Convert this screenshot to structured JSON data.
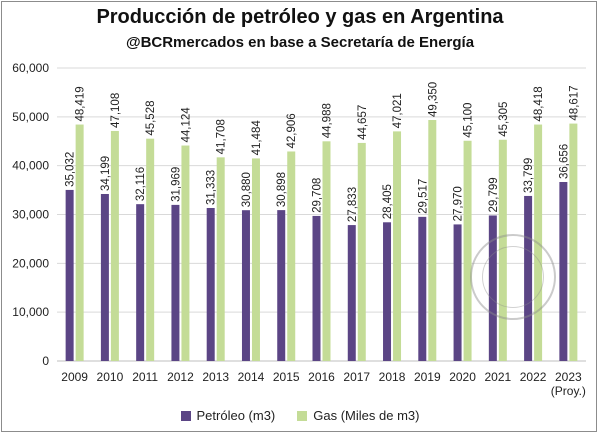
{
  "chart_data": {
    "type": "bar",
    "title": "Producción de petróleo y gas en Argentina",
    "subtitle": "@BCRmercados en base a Secretaría de Energía",
    "categories": [
      "2009",
      "2010",
      "2011",
      "2012",
      "2013",
      "2014",
      "2015",
      "2016",
      "2017",
      "2018",
      "2019",
      "2020",
      "2021",
      "2022",
      "2023"
    ],
    "category_sublabels": {
      "2023": "(Proy.)"
    },
    "series": [
      {
        "name": "Petróleo (m3)",
        "color": "#5b4585",
        "values": [
          35032,
          34199,
          32116,
          31969,
          31333,
          30880,
          30898,
          29708,
          27833,
          28405,
          29517,
          27970,
          29799,
          33799,
          36656
        ],
        "labels": [
          "35,032",
          "34,199",
          "32,116",
          "31,969",
          "31,333",
          "30,880",
          "30,898",
          "29,708",
          "27,833",
          "28,405",
          "29,517",
          "27,970",
          "29,799",
          "33,799",
          "36,656"
        ]
      },
      {
        "name": "Gas (Miles de m3)",
        "color": "#c4dc97",
        "values": [
          48419,
          47108,
          45528,
          44124,
          41708,
          41484,
          42906,
          44988,
          44657,
          47021,
          49350,
          45100,
          45305,
          48418,
          48617
        ],
        "labels": [
          "48,419",
          "47,108",
          "45,528",
          "44,124",
          "41,708",
          "41,484",
          "42,906",
          "44,988",
          "44,657",
          "47,021",
          "49,350",
          "45,100",
          "45,305",
          "48,418",
          "48,617"
        ]
      }
    ],
    "ylim": [
      0,
      60000
    ],
    "yticks": [
      0,
      10000,
      20000,
      30000,
      40000,
      50000,
      60000
    ],
    "ytick_labels": [
      "0",
      "10,000",
      "20,000",
      "30,000",
      "40,000",
      "50,000",
      "60,000"
    ],
    "grid": true,
    "legend_position": "bottom",
    "watermark": "BOLSA DE COMERCIO"
  }
}
